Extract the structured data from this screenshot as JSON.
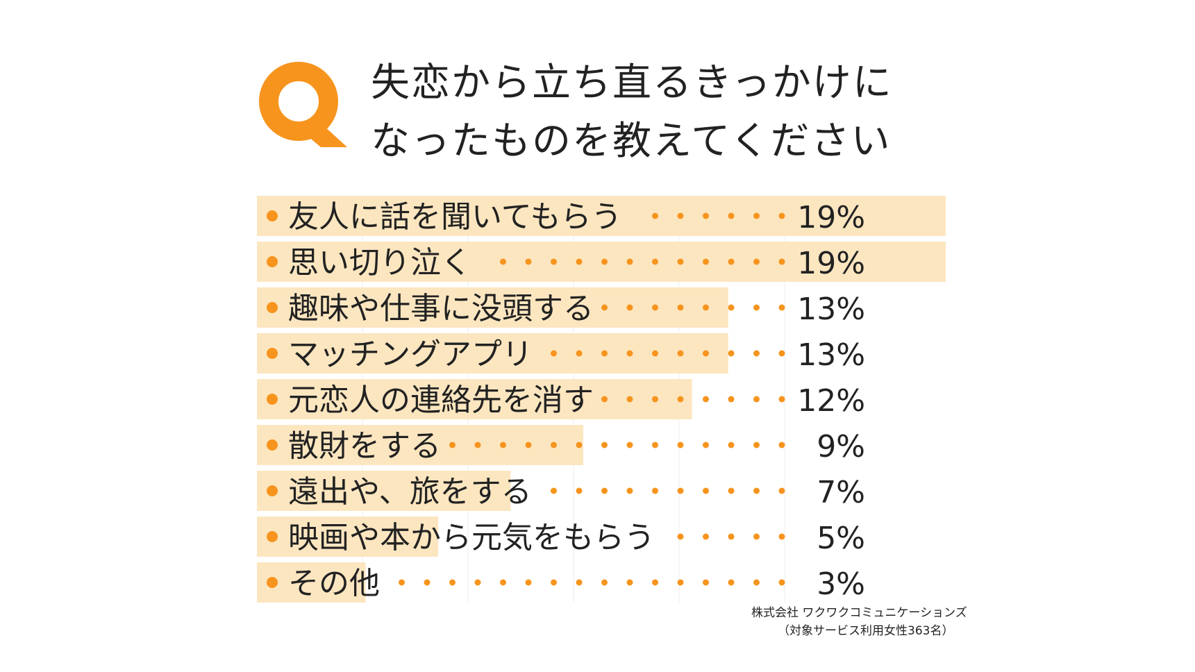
{
  "question": {
    "badge": "Q",
    "title_line1": "失恋から立ち直るきっかけに",
    "title_line2": "なったものを教えてください"
  },
  "colors": {
    "accent": "#F7941D",
    "bar": "#FCE6C0",
    "grid": "#EEEEEE",
    "text": "#222222"
  },
  "chart_data": {
    "type": "bar",
    "orientation": "horizontal",
    "categories": [
      "友人に話を聞いてもらう",
      "思い切り泣く",
      "趣味や仕事に没頭する",
      "マッチングアプリ",
      "元恋人の連絡先を消す",
      "散財をする",
      "遠出や、旅をする",
      "映画や本から元気をもらう",
      "その他"
    ],
    "values": [
      19,
      19,
      13,
      13,
      12,
      9,
      7,
      5,
      3
    ],
    "labels": [
      "19%",
      "19%",
      "13%",
      "13%",
      "12%",
      "9%",
      "7%",
      "5%",
      "3%"
    ],
    "unit": "%",
    "xlim": [
      0,
      19
    ],
    "grid": true
  },
  "source": {
    "line1": "株式会社 ワクワクコミュニケーションズ",
    "line2": "（対象サービス利用女性363名）"
  }
}
